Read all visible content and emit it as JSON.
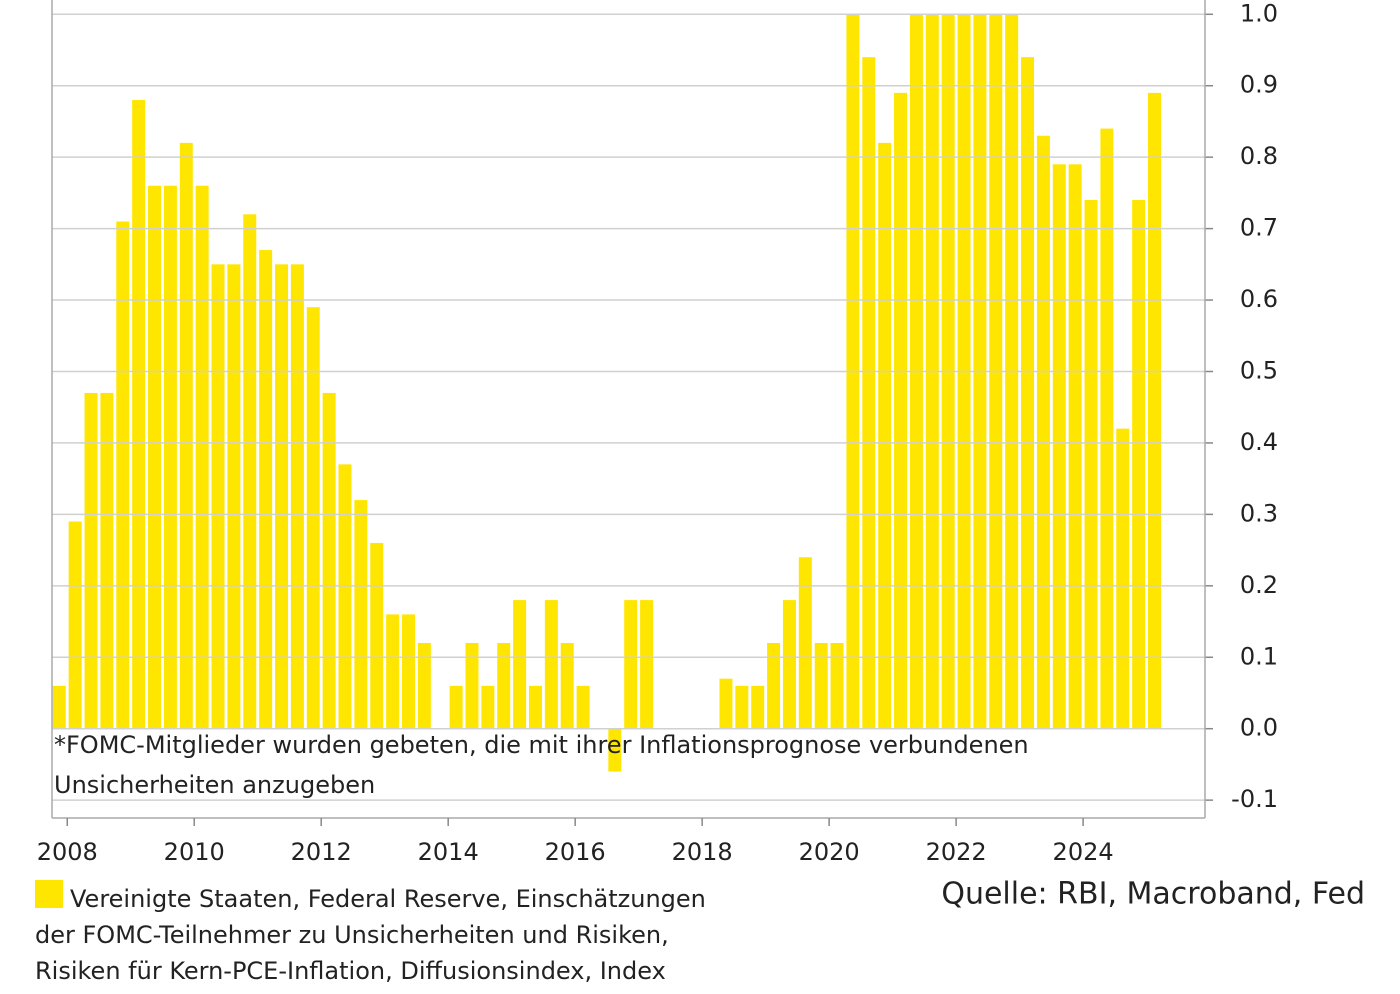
{
  "chart_data": {
    "type": "bar",
    "note": [
      "*FOMC-Mitglieder wurden gebeten, die mit ihrer Inflationsprognose verbundenen",
      "Unsicherheiten anzugeben"
    ],
    "source": "Quelle: RBI, Macroband, Fed",
    "x": [
      2007.875,
      2008.125,
      2008.375,
      2008.625,
      2008.875,
      2009.125,
      2009.375,
      2009.625,
      2009.875,
      2010.125,
      2010.375,
      2010.625,
      2010.875,
      2011.125,
      2011.375,
      2011.625,
      2011.875,
      2012.125,
      2012.375,
      2012.625,
      2012.875,
      2013.125,
      2013.375,
      2013.625,
      2013.875,
      2014.125,
      2014.375,
      2014.625,
      2014.875,
      2015.125,
      2015.375,
      2015.625,
      2015.875,
      2016.125,
      2016.375,
      2016.625,
      2016.875,
      2017.125,
      2017.375,
      2017.625,
      2017.875,
      2018.125,
      2018.375,
      2018.625,
      2018.875,
      2019.125,
      2019.375,
      2019.625,
      2019.875,
      2020.125,
      2020.375,
      2020.625,
      2020.875,
      2021.125,
      2021.375,
      2021.625,
      2021.875,
      2022.125,
      2022.375,
      2022.625,
      2022.875,
      2023.125,
      2023.375,
      2023.625,
      2023.875,
      2024.125,
      2024.375,
      2024.625,
      2024.875,
      2025.125
    ],
    "series": [
      {
        "name": [
          "Vereinigte Staaten, Federal Reserve, Einschätzungen",
          "der FOMC-Teilnehmer zu Unsicherheiten und Risiken,",
          "Risiken für Kern-PCE-Inflation, Diffusionsindex, Index"
        ],
        "color": "#ffe600",
        "values": [
          0.06,
          0.29,
          0.47,
          0.47,
          0.71,
          0.88,
          0.76,
          0.76,
          0.82,
          0.76,
          0.65,
          0.65,
          0.72,
          0.67,
          0.65,
          0.65,
          0.59,
          0.47,
          0.37,
          0.32,
          0.26,
          0.16,
          0.16,
          0.12,
          0,
          0.06,
          0.12,
          0.06,
          0.12,
          0.18,
          0.06,
          0.18,
          0.12,
          0.06,
          0,
          -0.06,
          0.18,
          0.18,
          0,
          0,
          0,
          0,
          0.07,
          0.06,
          0.06,
          0.12,
          0.18,
          0.24,
          0.12,
          0.12,
          1.0,
          0.94,
          0.82,
          0.89,
          1.0,
          1.0,
          1.0,
          1.0,
          1.0,
          1.0,
          1.0,
          0.94,
          0.83,
          0.79,
          0.79,
          0.74,
          0.84,
          0.42,
          0.74,
          0.89
        ]
      }
    ],
    "xlim": [
      2007.76,
      2025.92
    ],
    "xticks": [
      2008,
      2010,
      2012,
      2014,
      2016,
      2018,
      2020,
      2022,
      2024
    ],
    "ylim": [
      -0.125,
      1.02
    ],
    "yticks": [
      {
        "value": -0.1,
        "label": "-0.1"
      },
      {
        "value": 0,
        "label": "0.0"
      },
      0.1,
      0.2,
      0.3,
      0.4,
      0.5,
      0.6,
      0.7,
      0.8,
      0.9,
      {
        "value": 1,
        "label": "1.0"
      }
    ],
    "grid": true
  }
}
